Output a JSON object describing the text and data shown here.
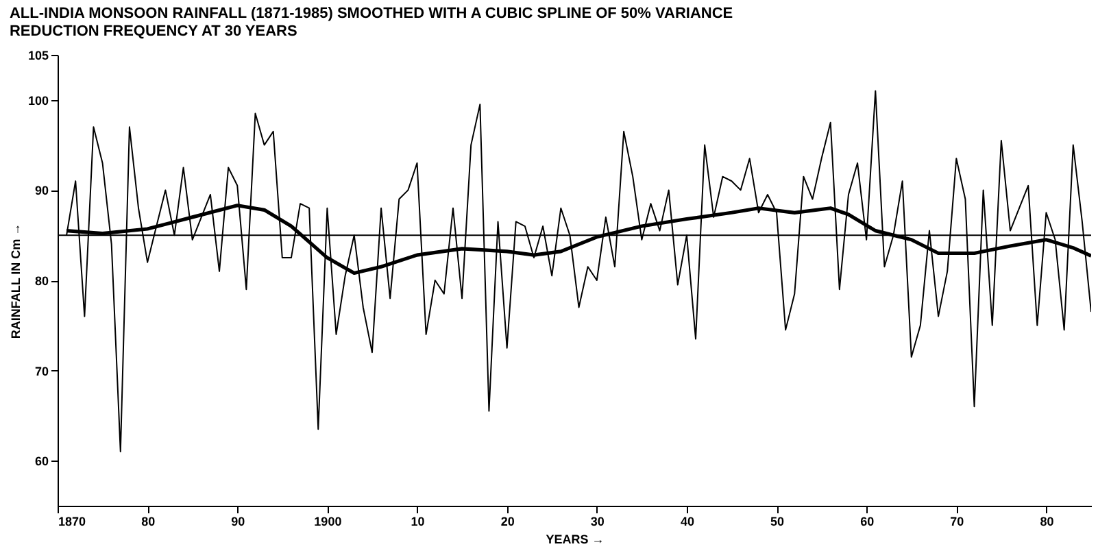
{
  "chart_data": {
    "type": "line",
    "title": "ALL-INDIA MONSOON RAINFALL (1871-1985) SMOOTHED WITH A CUBIC SPLINE OF 50% VARIANCE\nREDUCTION FREQUENCY AT 30 YEARS",
    "xlabel": "YEARS →",
    "ylabel": "RAINFALL IN Cm →",
    "x": [
      1871,
      1872,
      1873,
      1874,
      1875,
      1876,
      1877,
      1878,
      1879,
      1880,
      1881,
      1882,
      1883,
      1884,
      1885,
      1886,
      1887,
      1888,
      1889,
      1890,
      1891,
      1892,
      1893,
      1894,
      1895,
      1896,
      1897,
      1898,
      1899,
      1900,
      1901,
      1902,
      1903,
      1904,
      1905,
      1906,
      1907,
      1908,
      1909,
      1910,
      1911,
      1912,
      1913,
      1914,
      1915,
      1916,
      1917,
      1918,
      1919,
      1920,
      1921,
      1922,
      1923,
      1924,
      1925,
      1926,
      1927,
      1928,
      1929,
      1930,
      1931,
      1932,
      1933,
      1934,
      1935,
      1936,
      1937,
      1938,
      1939,
      1940,
      1941,
      1942,
      1943,
      1944,
      1945,
      1946,
      1947,
      1948,
      1949,
      1950,
      1951,
      1952,
      1953,
      1954,
      1955,
      1956,
      1957,
      1958,
      1959,
      1960,
      1961,
      1962,
      1963,
      1964,
      1965,
      1966,
      1967,
      1968,
      1969,
      1970,
      1971,
      1972,
      1973,
      1974,
      1975,
      1976,
      1977,
      1978,
      1979,
      1980,
      1981,
      1982,
      1983,
      1984,
      1985
    ],
    "series": [
      {
        "color": "#000000",
        "values": [
          85,
          91,
          76,
          97,
          93,
          84,
          61,
          97,
          88,
          82,
          86,
          90,
          85,
          92.5,
          84.5,
          87,
          89.5,
          81,
          92.5,
          90.5,
          79,
          98.5,
          95,
          96.5,
          82.5,
          82.5,
          88.5,
          88,
          63.5,
          88,
          74,
          80.5,
          85,
          77,
          72,
          88,
          78,
          89,
          90,
          93,
          74,
          80,
          78.5,
          88,
          78,
          95,
          99.5,
          65.5,
          86.5,
          72.5,
          86.5,
          86,
          82.5,
          86,
          80.5,
          88,
          85,
          77,
          81.5,
          80,
          87,
          81.5,
          96.5,
          91.5,
          84.5,
          88.5,
          85.5,
          90,
          79.5,
          85,
          73.5,
          95,
          87,
          91.5,
          91,
          90,
          93.5,
          87.5,
          89.5,
          87.5,
          74.5,
          78.5,
          91.5,
          89,
          93.5,
          97.5,
          79,
          89.5,
          93,
          84.5,
          101,
          81.5,
          85,
          91,
          71.5,
          75,
          85.5,
          76,
          81,
          93.5,
          89,
          66,
          90,
          75,
          95.5,
          85.5,
          88,
          90.5,
          75,
          87.5,
          84.5,
          74.5,
          95,
          86.5,
          76.5
        ]
      },
      {
        "color": "#000000",
        "x": [
          1871,
          1875,
          1880,
          1885,
          1890,
          1893,
          1896,
          1900,
          1903,
          1906,
          1910,
          1915,
          1920,
          1923,
          1926,
          1930,
          1935,
          1940,
          1945,
          1948,
          1952,
          1956,
          1958,
          1961,
          1965,
          1968,
          1972,
          1976,
          1980,
          1983,
          1985
        ],
        "values": [
          85.5,
          85.2,
          85.7,
          87,
          88.3,
          87.8,
          86,
          82.5,
          80.8,
          81.5,
          82.8,
          83.5,
          83.2,
          82.8,
          83.2,
          84.8,
          86,
          86.8,
          87.5,
          88,
          87.5,
          88,
          87.3,
          85.5,
          84.5,
          83,
          83,
          83.8,
          84.5,
          83.6,
          82.7
        ]
      }
    ],
    "ref_lines": [
      {
        "axis": "y",
        "value": 85,
        "color": "#000000"
      }
    ],
    "xlim": [
      1870,
      1985
    ],
    "xticks": [
      {
        "value": 1870,
        "label": "1870"
      },
      {
        "value": 1880,
        "label": "80"
      },
      {
        "value": 1890,
        "label": "90"
      },
      {
        "value": 1900,
        "label": "1900"
      },
      {
        "value": 1910,
        "label": "10"
      },
      {
        "value": 1920,
        "label": "20"
      },
      {
        "value": 1930,
        "label": "30"
      },
      {
        "value": 1940,
        "label": "40"
      },
      {
        "value": 1950,
        "label": "50"
      },
      {
        "value": 1960,
        "label": "60"
      },
      {
        "value": 1970,
        "label": "70"
      },
      {
        "value": 1980,
        "label": "80"
      }
    ],
    "ylim": [
      55,
      105
    ],
    "yticks": [
      60,
      70,
      80,
      90,
      100,
      105
    ],
    "grid": false,
    "marker": "none",
    "line_style": "solid"
  }
}
